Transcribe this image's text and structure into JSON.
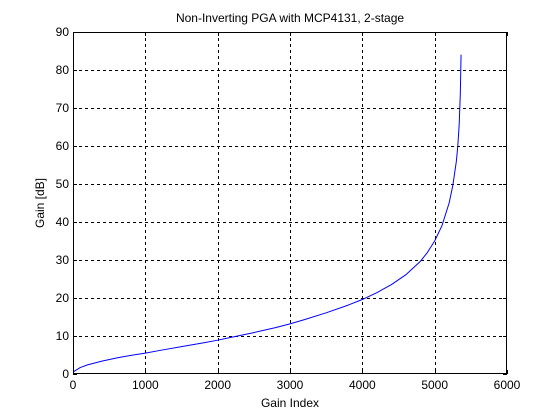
{
  "chart_data": {
    "type": "line",
    "title": "Non-Inverting PGA with MCP4131, 2-stage",
    "xlabel": "Gain Index",
    "ylabel": "Gain [dB]",
    "xlim": [
      0,
      6000
    ],
    "ylim": [
      0,
      90
    ],
    "xticks": [
      0,
      1000,
      2000,
      3000,
      4000,
      5000,
      6000
    ],
    "yticks": [
      0,
      10,
      20,
      30,
      40,
      50,
      60,
      70,
      80,
      90
    ],
    "xtick_labels": [
      "0",
      "1000",
      "2000",
      "3000",
      "4000",
      "5000",
      "6000"
    ],
    "ytick_labels": [
      "0",
      "10",
      "20",
      "30",
      "40",
      "50",
      "60",
      "70",
      "80",
      "90"
    ],
    "grid": true,
    "grid_style": "dashed",
    "series": [
      {
        "color": "#0000ff",
        "x": [
          0,
          100,
          200,
          400,
          600,
          800,
          1000,
          1200,
          1500,
          1800,
          2000,
          2200,
          2500,
          2800,
          3000,
          3200,
          3500,
          3800,
          4000,
          4200,
          4400,
          4600,
          4800,
          4900,
          5000,
          5100,
          5200,
          5250,
          5300,
          5320,
          5340,
          5355,
          5365
        ],
        "y": [
          0.5,
          1.7,
          2.4,
          3.4,
          4.2,
          4.9,
          5.5,
          6.2,
          7.2,
          8.2,
          8.9,
          9.7,
          10.9,
          12.2,
          13.2,
          14.3,
          16.1,
          18.1,
          19.6,
          21.4,
          23.5,
          26.1,
          29.6,
          32.0,
          35.0,
          39.0,
          45.0,
          49.5,
          56.0,
          60.0,
          66.0,
          74.0,
          84.0
        ]
      }
    ]
  }
}
